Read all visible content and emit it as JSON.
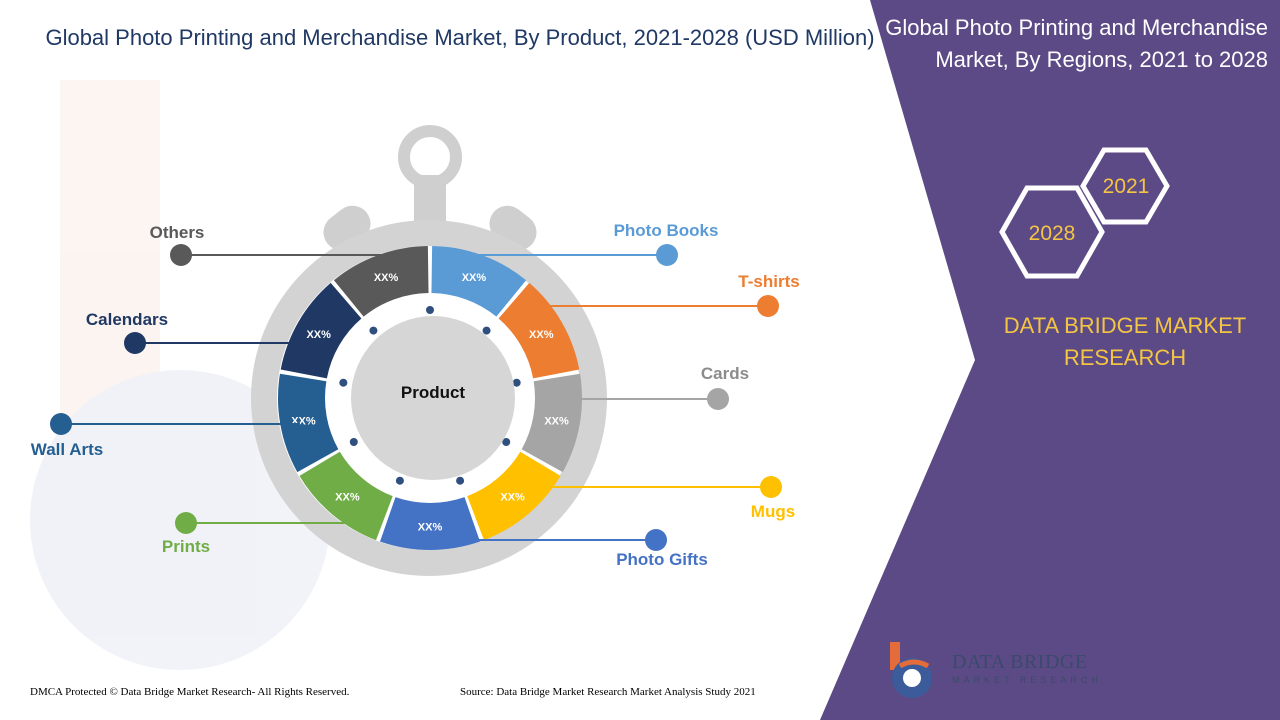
{
  "header": {
    "title": "Global Photo Printing and Merchandise Market, By Product, 2021-2028 (USD Million)"
  },
  "right_panel": {
    "title": "Global Photo Printing and Merchandise Market, By Regions, 2021 to 2028",
    "hex_year_1": "2021",
    "hex_year_2": "2028",
    "brand": "DATA BRIDGE MARKET RESEARCH",
    "panel_color": "#5c4a86",
    "brand_color": "#f4c542"
  },
  "chart_data": {
    "type": "pie",
    "style": "donut",
    "center_label": "Product",
    "segments": [
      {
        "label": "Photo Books",
        "value_label": "XX%",
        "color": "#5b9bd5"
      },
      {
        "label": "T-shirts",
        "value_label": "XX%",
        "color": "#ed7d31"
      },
      {
        "label": "Cards",
        "value_label": "XX%",
        "color": "#a5a5a5"
      },
      {
        "label": "Mugs",
        "value_label": "XX%",
        "color": "#ffc000"
      },
      {
        "label": "Photo Gifts",
        "value_label": "XX%",
        "color": "#4472c4"
      },
      {
        "label": "Prints",
        "value_label": "XX%",
        "color": "#70ad47"
      },
      {
        "label": "Wall Arts",
        "value_label": "XX%",
        "color": "#255e91"
      },
      {
        "label": "Calendars",
        "value_label": "XX%",
        "color": "#203864"
      },
      {
        "label": "Others",
        "value_label": "XX%",
        "color": "#595959"
      }
    ]
  },
  "footer": {
    "copyright": "DMCA Protected © Data Bridge Market Research- All Rights Reserved.",
    "source": "Source: Data Bridge Market Research Market Analysis Study 2021"
  },
  "logo": {
    "name": "DATA BRIDGE",
    "sub": "MARKET RESEARCH"
  }
}
